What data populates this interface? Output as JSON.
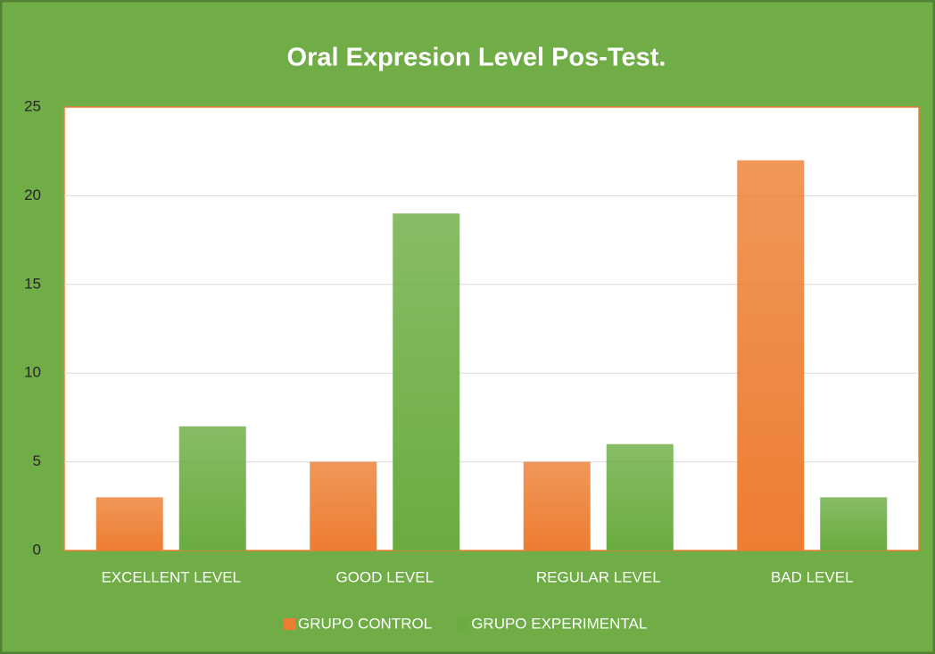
{
  "chart_data": {
    "type": "bar",
    "title": "Oral Expresion Level Pos-Test.",
    "categories": [
      "EXCELLENT LEVEL",
      "GOOD LEVEL",
      "REGULAR LEVEL",
      "BAD LEVEL"
    ],
    "series": [
      {
        "name": "GRUPO CONTROL",
        "color": "#ed7d31",
        "values": [
          3,
          5,
          5,
          22
        ]
      },
      {
        "name": "GRUPO EXPERIMENTAL",
        "color": "#6aac3f",
        "values": [
          7,
          19,
          6,
          3
        ]
      }
    ],
    "ylim": [
      0,
      25
    ],
    "yticks": [
      0,
      5,
      10,
      15,
      20,
      25
    ],
    "grid": true,
    "legend": "bottom"
  }
}
